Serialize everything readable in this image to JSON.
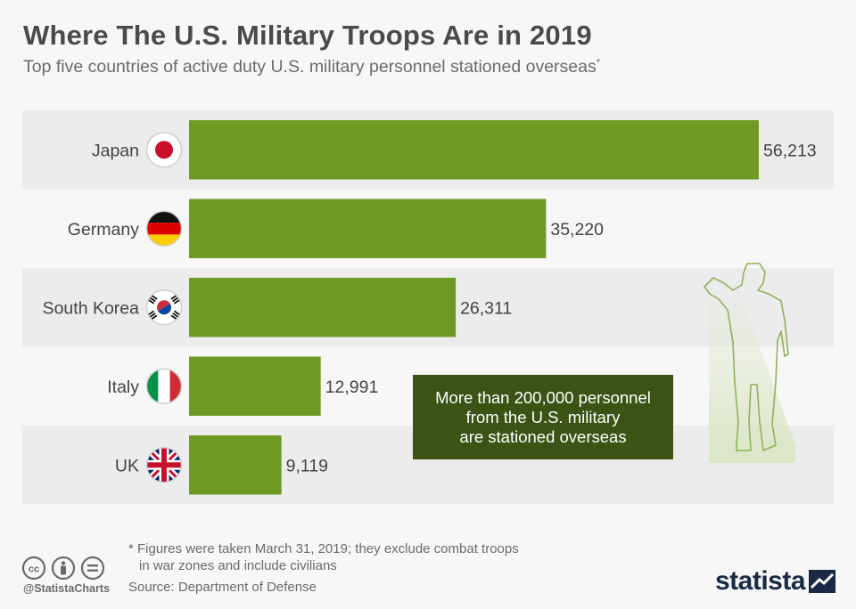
{
  "header": {
    "title": "Where The U.S. Military Troops Are in 2019",
    "subtitle": "Top five countries of active duty U.S. military personnel stationed overseas",
    "subtitle_mark": "*"
  },
  "chart_data": {
    "type": "bar",
    "orientation": "horizontal",
    "title": "Where The U.S. Military Troops Are in 2019",
    "subtitle": "Top five countries of active duty U.S. military personnel stationed overseas",
    "categories": [
      "Japan",
      "Germany",
      "South Korea",
      "Italy",
      "UK"
    ],
    "values": [
      56213,
      35220,
      26311,
      12991,
      9119
    ],
    "value_labels": [
      "56,213",
      "35,220",
      "26,311",
      "12,991",
      "9,119"
    ],
    "bar_color": "#6e9a23",
    "row_band_color": "#ececec",
    "xlim": [
      0,
      56213
    ],
    "grid": false,
    "legend": "none"
  },
  "callout": {
    "lines": [
      "More than 200,000 personnel",
      "from the U.S. military",
      "are stationed overseas"
    ],
    "background": "#3b5416"
  },
  "footer": {
    "footnote_line1": "* Figures were taken March 31, 2019; they exclude combat troops",
    "footnote_line2": "in war zones and include civilians",
    "source": "Source: Department of Defense",
    "handle": "@StatistaCharts",
    "brand": "statista",
    "icons": [
      "cc-icon",
      "by-icon",
      "nd-icon"
    ]
  }
}
